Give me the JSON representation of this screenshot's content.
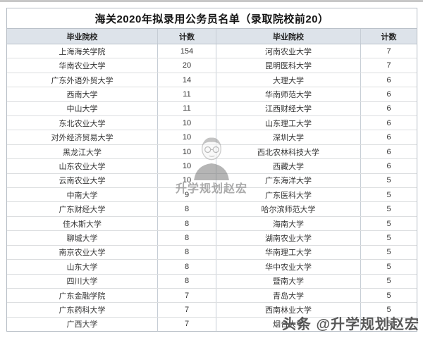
{
  "table": {
    "title": "海关2020年拟录用公务员名单（录取院校前20）",
    "columns": [
      "毕业院校",
      "计数",
      "毕业院校",
      "计数"
    ],
    "header_bg": "#dde3ea",
    "rows": [
      {
        "school_left": "上海海关学院",
        "count_left": "154",
        "school_right": "河南农业大学",
        "count_right": "7"
      },
      {
        "school_left": "华南农业大学",
        "count_left": "20",
        "school_right": "昆明医科大学",
        "count_right": "7"
      },
      {
        "school_left": "广东外语外贸大学",
        "count_left": "14",
        "school_right": "大理大学",
        "count_right": "6"
      },
      {
        "school_left": "西南大学",
        "count_left": "11",
        "school_right": "华南师范大学",
        "count_right": "6"
      },
      {
        "school_left": "中山大学",
        "count_left": "11",
        "school_right": "江西财经大学",
        "count_right": "6"
      },
      {
        "school_left": "东北农业大学",
        "count_left": "10",
        "school_right": "山东理工大学",
        "count_right": "6"
      },
      {
        "school_left": "对外经济贸易大学",
        "count_left": "10",
        "school_right": "深圳大学",
        "count_right": "6"
      },
      {
        "school_left": "黑龙江大学",
        "count_left": "10",
        "school_right": "西北农林科技大学",
        "count_right": "6"
      },
      {
        "school_left": "山东农业大学",
        "count_left": "10",
        "school_right": "西藏大学",
        "count_right": "6"
      },
      {
        "school_left": "云南农业大学",
        "count_left": "10",
        "school_right": "广东海洋大学",
        "count_right": "5"
      },
      {
        "school_left": "中南大学",
        "count_left": "9",
        "school_right": "广东医科大学",
        "count_right": "5"
      },
      {
        "school_left": "广东财经大学",
        "count_left": "8",
        "school_right": "哈尔滨师范大学",
        "count_right": "5"
      },
      {
        "school_left": "佳木斯大学",
        "count_left": "8",
        "school_right": "海南大学",
        "count_right": "5"
      },
      {
        "school_left": "聊城大学",
        "count_left": "8",
        "school_right": "湖南农业大学",
        "count_right": "5"
      },
      {
        "school_left": "南京农业大学",
        "count_left": "8",
        "school_right": "华南理工大学",
        "count_right": "5"
      },
      {
        "school_left": "山东大学",
        "count_left": "8",
        "school_right": "华中农业大学",
        "count_right": "5"
      },
      {
        "school_left": "四川大学",
        "count_left": "8",
        "school_right": "暨南大学",
        "count_right": "5"
      },
      {
        "school_left": "广东金融学院",
        "count_left": "7",
        "school_right": "青岛大学",
        "count_right": "5"
      },
      {
        "school_left": "广东药科大学",
        "count_left": "7",
        "school_right": "西南林业大学",
        "count_right": "5"
      },
      {
        "school_left": "广西大学",
        "count_left": "7",
        "school_right": "烟台大学",
        "count_right": "5"
      }
    ]
  },
  "watermarks": {
    "center_icon": "person-sketch",
    "center_text": "升学规划赵宏",
    "bottom_right_text": "头条 @升学规划赵宏"
  },
  "colors": {
    "header_bg": "#dde3ea",
    "grid_line": "#c6cdd5",
    "row_line": "#dcdee0",
    "outer_border": "#b5bcc4",
    "watermark_dark": "#4a4a4a"
  }
}
